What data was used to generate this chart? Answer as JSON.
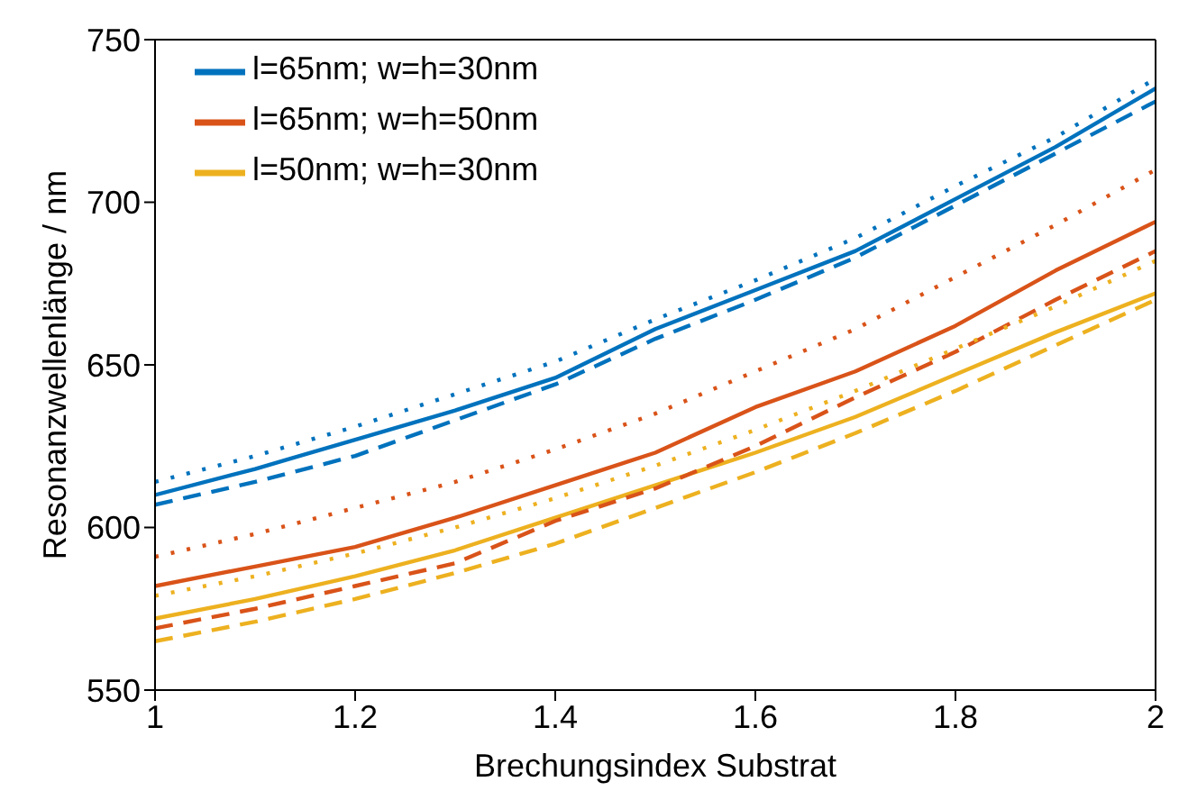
{
  "chart_data": {
    "type": "line",
    "xlabel": "Brechungsindex Substrat",
    "ylabel": "Resonanzwellenlänge / nm",
    "x": [
      1,
      1.1,
      1.2,
      1.3,
      1.4,
      1.5,
      1.6,
      1.7,
      1.8,
      1.9,
      2
    ],
    "xlim": [
      1,
      2
    ],
    "xticks": [
      1,
      1.2,
      1.4,
      1.6,
      1.8,
      2
    ],
    "ylim": [
      550,
      750
    ],
    "yticks": [
      550,
      600,
      650,
      700,
      750
    ],
    "grid": false,
    "legend": "top left",
    "marker": "none",
    "series": [
      {
        "name": "l=65nm; w=h=30nm",
        "color": "#0072bd",
        "line_style": "solid",
        "values": [
          610,
          618,
          627,
          636,
          646,
          661,
          673,
          685,
          701,
          717,
          735
        ]
      },
      {
        "name": "l=65nm; w=h=50nm",
        "color": "#d95319",
        "line_style": "solid",
        "values": [
          582,
          588,
          594,
          603,
          613,
          623,
          637,
          648,
          662,
          679,
          694
        ]
      },
      {
        "name": "l=50nm; w=h=30nm",
        "color": "#edb120",
        "line_style": "solid",
        "values": [
          572,
          578,
          585,
          593,
          603,
          613,
          623,
          634,
          647,
          660,
          672
        ]
      },
      {
        "color": "#0072bd",
        "line_style": "dashed",
        "values": [
          607,
          614,
          622,
          633,
          644,
          658,
          670,
          683,
          699,
          715,
          731
        ]
      },
      {
        "color": "#d95319",
        "line_style": "dashed",
        "values": [
          569,
          575,
          582,
          589,
          602,
          612,
          625,
          640,
          654,
          670,
          685
        ]
      },
      {
        "color": "#edb120",
        "line_style": "dashed",
        "values": [
          565,
          571,
          578,
          586,
          595,
          606,
          617,
          629,
          642,
          656,
          670
        ]
      },
      {
        "color": "#0072bd",
        "line_style": "dotted",
        "values": [
          614,
          622,
          631,
          641,
          651,
          664,
          676,
          689,
          705,
          720,
          738
        ]
      },
      {
        "color": "#d95319",
        "line_style": "dotted",
        "values": [
          591,
          598,
          606,
          614,
          624,
          635,
          648,
          661,
          677,
          693,
          710
        ]
      },
      {
        "color": "#edb120",
        "line_style": "dotted",
        "values": [
          579,
          585,
          592,
          600,
          609,
          619,
          630,
          642,
          655,
          668,
          682
        ]
      }
    ]
  }
}
